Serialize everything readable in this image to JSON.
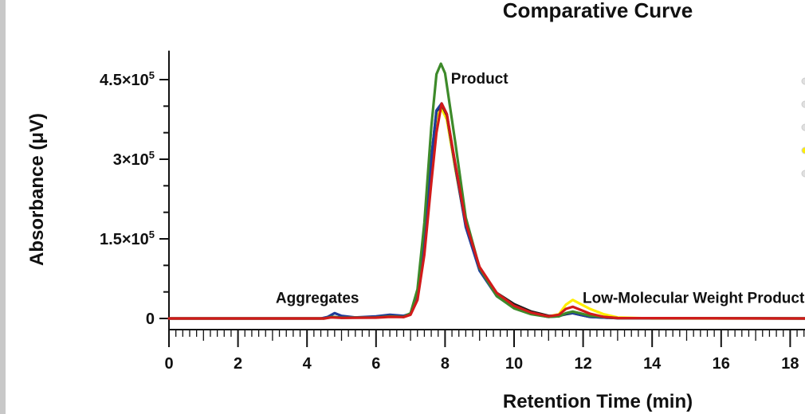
{
  "chart_data": {
    "type": "line",
    "title": "Comparative Curve",
    "xlabel": "Retention Time (min)",
    "ylabel": "Absorbance (μV)",
    "xlim": [
      0,
      18.7
    ],
    "ylim": [
      -20000,
      500000
    ],
    "x_ticks": [
      0,
      2,
      4,
      6,
      8,
      10,
      12,
      14,
      16,
      18
    ],
    "x_tick_labels": [
      "0",
      "2",
      "4",
      "6",
      "8",
      "10",
      "12",
      "14",
      "16",
      "18"
    ],
    "y_ticks": [
      {
        "value": 0,
        "mantissa": "0",
        "exponent": ""
      },
      {
        "value": 150000,
        "mantissa": "1.5×10",
        "exponent": "5"
      },
      {
        "value": 300000,
        "mantissa": "3×10",
        "exponent": "5"
      },
      {
        "value": 450000,
        "mantissa": "4.5×10",
        "exponent": "5"
      }
    ],
    "grid": false,
    "annotations": [
      {
        "text": "Aggregates",
        "x": 4.3,
        "y": 40000
      },
      {
        "text": "Product",
        "x": 9.0,
        "y": 453000
      },
      {
        "text": "Low-Molecular Weight Product",
        "x": 15.2,
        "y": 40000
      }
    ],
    "series": [
      {
        "color": "#ffee00",
        "points": [
          [
            0,
            0
          ],
          [
            4.5,
            0
          ],
          [
            4.7,
            3000
          ],
          [
            5.0,
            1500
          ],
          [
            6.0,
            2000
          ],
          [
            6.4,
            4000
          ],
          [
            6.8,
            3000
          ],
          [
            7.0,
            8000
          ],
          [
            7.2,
            40000
          ],
          [
            7.4,
            140000
          ],
          [
            7.6,
            290000
          ],
          [
            7.75,
            380000
          ],
          [
            7.9,
            395000
          ],
          [
            8.05,
            375000
          ],
          [
            8.3,
            280000
          ],
          [
            8.6,
            175000
          ],
          [
            9.0,
            95000
          ],
          [
            9.5,
            45000
          ],
          [
            10.0,
            22000
          ],
          [
            10.5,
            10000
          ],
          [
            11.0,
            4000
          ],
          [
            11.3,
            8000
          ],
          [
            11.5,
            26000
          ],
          [
            11.7,
            35000
          ],
          [
            11.9,
            28000
          ],
          [
            12.2,
            18000
          ],
          [
            12.6,
            8000
          ],
          [
            13.0,
            2000
          ],
          [
            14.0,
            0
          ],
          [
            18.7,
            0
          ]
        ]
      },
      {
        "color": "#1a1a1a",
        "points": [
          [
            0,
            0
          ],
          [
            4.5,
            0
          ],
          [
            4.7,
            3000
          ],
          [
            5.0,
            1500
          ],
          [
            6.0,
            2000
          ],
          [
            6.4,
            4000
          ],
          [
            6.8,
            3000
          ],
          [
            7.0,
            9000
          ],
          [
            7.2,
            45000
          ],
          [
            7.4,
            150000
          ],
          [
            7.6,
            300000
          ],
          [
            7.75,
            390000
          ],
          [
            7.9,
            403000
          ],
          [
            8.05,
            383000
          ],
          [
            8.3,
            285000
          ],
          [
            8.6,
            175000
          ],
          [
            9.0,
            93000
          ],
          [
            9.5,
            48000
          ],
          [
            10.0,
            27000
          ],
          [
            10.5,
            13000
          ],
          [
            11.0,
            5000
          ],
          [
            11.3,
            5000
          ],
          [
            11.5,
            8000
          ],
          [
            11.7,
            10000
          ],
          [
            11.9,
            7000
          ],
          [
            12.2,
            3000
          ],
          [
            13.0,
            500
          ],
          [
            18.7,
            0
          ]
        ]
      },
      {
        "color": "#1f3c9a",
        "points": [
          [
            0,
            0
          ],
          [
            4.4,
            0
          ],
          [
            4.6,
            3000
          ],
          [
            4.8,
            10000
          ],
          [
            5.0,
            5000
          ],
          [
            5.4,
            2000
          ],
          [
            6.0,
            4000
          ],
          [
            6.4,
            7000
          ],
          [
            6.8,
            5000
          ],
          [
            7.0,
            9000
          ],
          [
            7.2,
            45000
          ],
          [
            7.4,
            150000
          ],
          [
            7.6,
            300000
          ],
          [
            7.75,
            392000
          ],
          [
            7.9,
            405000
          ],
          [
            8.05,
            385000
          ],
          [
            8.3,
            285000
          ],
          [
            8.6,
            172000
          ],
          [
            9.0,
            90000
          ],
          [
            9.5,
            42000
          ],
          [
            10.0,
            20000
          ],
          [
            10.5,
            9000
          ],
          [
            11.0,
            3000
          ],
          [
            11.3,
            4000
          ],
          [
            11.5,
            9000
          ],
          [
            11.7,
            10000
          ],
          [
            11.9,
            7000
          ],
          [
            12.2,
            3000
          ],
          [
            13.0,
            500
          ],
          [
            18.7,
            0
          ]
        ]
      },
      {
        "color": "#3d8a2a",
        "points": [
          [
            0,
            0
          ],
          [
            4.5,
            0
          ],
          [
            4.7,
            3000
          ],
          [
            5.0,
            1500
          ],
          [
            6.0,
            2000
          ],
          [
            6.4,
            4000
          ],
          [
            6.8,
            3000
          ],
          [
            7.0,
            10000
          ],
          [
            7.2,
            55000
          ],
          [
            7.4,
            180000
          ],
          [
            7.6,
            360000
          ],
          [
            7.75,
            460000
          ],
          [
            7.88,
            480000
          ],
          [
            8.0,
            462000
          ],
          [
            8.3,
            330000
          ],
          [
            8.6,
            190000
          ],
          [
            9.0,
            95000
          ],
          [
            9.5,
            42000
          ],
          [
            10.0,
            19000
          ],
          [
            10.5,
            8000
          ],
          [
            11.0,
            3000
          ],
          [
            11.3,
            4000
          ],
          [
            11.5,
            10000
          ],
          [
            11.7,
            13000
          ],
          [
            11.9,
            10000
          ],
          [
            12.2,
            5000
          ],
          [
            13.0,
            800
          ],
          [
            18.7,
            0
          ]
        ]
      },
      {
        "color": "#d11a1a",
        "points": [
          [
            0,
            0
          ],
          [
            4.5,
            0
          ],
          [
            4.7,
            2000
          ],
          [
            5.0,
            1000
          ],
          [
            6.0,
            1500
          ],
          [
            6.4,
            3000
          ],
          [
            6.8,
            2500
          ],
          [
            7.0,
            7000
          ],
          [
            7.2,
            35000
          ],
          [
            7.4,
            120000
          ],
          [
            7.6,
            255000
          ],
          [
            7.75,
            350000
          ],
          [
            7.9,
            405000
          ],
          [
            8.05,
            385000
          ],
          [
            8.3,
            290000
          ],
          [
            8.6,
            180000
          ],
          [
            9.0,
            97000
          ],
          [
            9.5,
            48000
          ],
          [
            10.0,
            24000
          ],
          [
            10.5,
            11000
          ],
          [
            11.0,
            4000
          ],
          [
            11.3,
            7000
          ],
          [
            11.5,
            18000
          ],
          [
            11.7,
            22000
          ],
          [
            11.9,
            17000
          ],
          [
            12.2,
            9000
          ],
          [
            12.6,
            3000
          ],
          [
            13.0,
            800
          ],
          [
            18.7,
            0
          ]
        ]
      }
    ],
    "legend_colors": [
      "#e0e0e0",
      "#e0e0e0",
      "#e0e0e0",
      "#ffee00",
      "#e0e0e0"
    ]
  }
}
